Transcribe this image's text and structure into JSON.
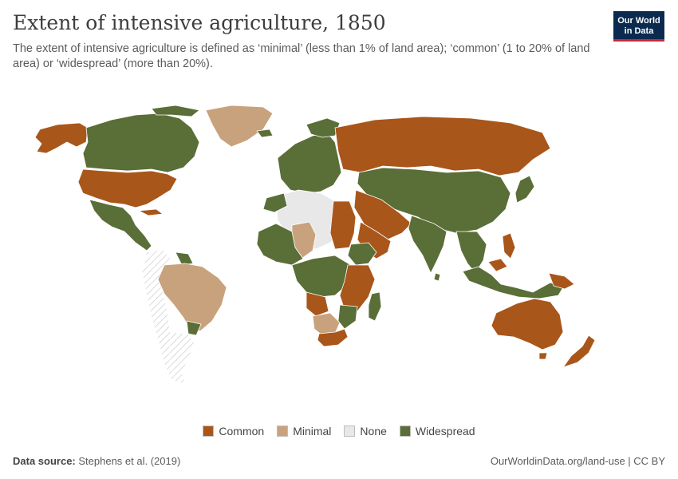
{
  "header": {
    "title": "Extent of intensive agriculture, 1850",
    "subtitle": "The extent of intensive agriculture is defined as ‘minimal’ (less than 1% of land area); ‘common’ (1 to 20% of land area) or ‘widespread’ (more than 20%)."
  },
  "logo": {
    "line1": "Our World",
    "line2": "in Data"
  },
  "colors": {
    "common": "#a9561b",
    "minimal": "#c8a27d",
    "none": "#e8e8e8",
    "widespread": "#5a6e37",
    "border": "#ffffff"
  },
  "legend": {
    "items": [
      {
        "label": "Common",
        "color": "#a9561b"
      },
      {
        "label": "Minimal",
        "color": "#c8a27d"
      },
      {
        "label": "None",
        "color": "#e8e8e8"
      },
      {
        "label": "Widespread",
        "color": "#5a6e37"
      }
    ]
  },
  "footer": {
    "source_label": "Data source:",
    "source_text": "Stephens et al. (2019)",
    "url": "OurWorldinData.org/land-use | CC BY"
  },
  "map_data": {
    "year": "1850",
    "categories": [
      "Common",
      "Minimal",
      "None",
      "Widespread"
    ],
    "regions": [
      {
        "region": "North America (Alaska/W. Canada)",
        "category": "Common"
      },
      {
        "region": "Canada (east)",
        "category": "Widespread"
      },
      {
        "region": "United States",
        "category": "Common"
      },
      {
        "region": "Mexico & Central America",
        "category": "Widespread"
      },
      {
        "region": "Greenland",
        "category": "Minimal"
      },
      {
        "region": "Brazil",
        "category": "Minimal"
      },
      {
        "region": "Western South America",
        "category": "No data"
      },
      {
        "region": "Europe",
        "category": "Widespread"
      },
      {
        "region": "Russia",
        "category": "Common"
      },
      {
        "region": "Central & East Asia",
        "category": "Widespread"
      },
      {
        "region": "Arabian Peninsula",
        "category": "Common"
      },
      {
        "region": "India",
        "category": "Widespread"
      },
      {
        "region": "Sahara",
        "category": "None"
      },
      {
        "region": "West Africa",
        "category": "Widespread"
      },
      {
        "region": "East Africa",
        "category": "Common"
      },
      {
        "region": "Southern Africa",
        "category": "Minimal"
      },
      {
        "region": "Madagascar",
        "category": "Widespread"
      },
      {
        "region": "Australia",
        "category": "Common"
      },
      {
        "region": "New Zealand",
        "category": "Common"
      },
      {
        "region": "Southeast Asia",
        "category": "Widespread"
      }
    ]
  }
}
